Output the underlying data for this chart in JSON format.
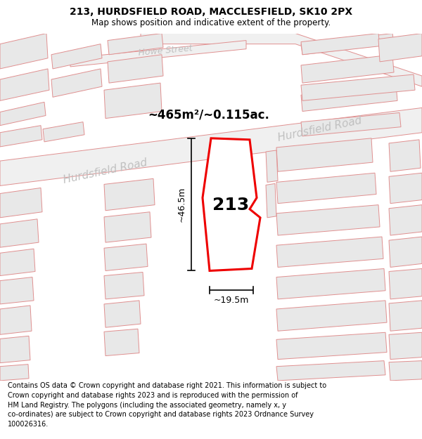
{
  "title": "213, HURDSFIELD ROAD, MACCLESFIELD, SK10 2PX",
  "subtitle": "Map shows position and indicative extent of the property.",
  "footer": "Contains OS data © Crown copyright and database right 2021. This information is subject to Crown copyright and database rights 2023 and is reproduced with the permission of\nHM Land Registry. The polygons (including the associated geometry, namely x, y\nco-ordinates) are subject to Crown copyright and database rights 2023 Ordnance Survey\n100026316.",
  "map_bg": "#f5f5f5",
  "bfill": "#e8e8e8",
  "bedge": "#e09090",
  "rfill": "#efefef",
  "redge": "#e09090",
  "highlight_fill": "#ffffff",
  "highlight_edge": "#ee0000",
  "highlight_lw": 2.2,
  "label_213": "213",
  "area_label": "~465m²/~0.115ac.",
  "dim_width": "~19.5m",
  "dim_height": "~46.5m",
  "road_label_hurds1": "Hurdsfield Road",
  "road_label_hurds2": "Hurdsfield Road",
  "road_label_howe": "Howe Street",
  "road_text_color": "#c0c0c0",
  "title_fontsize": 10,
  "subtitle_fontsize": 8.5,
  "footer_fontsize": 7.0,
  "label_fontsize": 18,
  "area_fontsize": 12,
  "dim_fontsize": 9,
  "road_fontsize": 11
}
